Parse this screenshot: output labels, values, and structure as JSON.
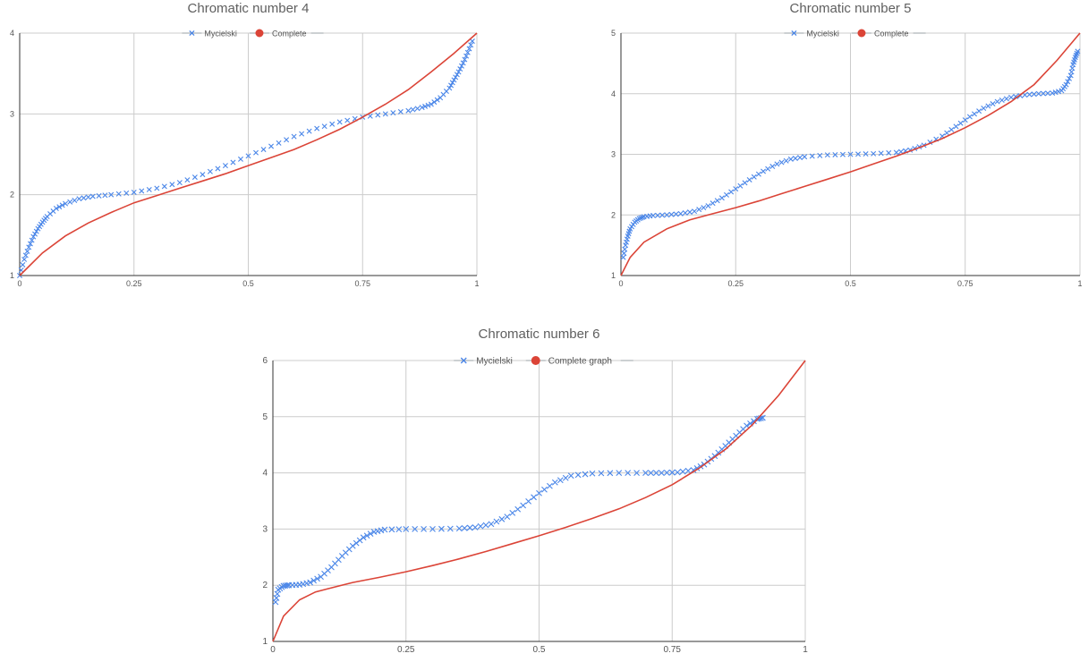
{
  "chart_data": [
    {
      "type": "scatter",
      "title": "Chromatic number 4",
      "xlabel": "",
      "ylabel": "",
      "xlim": [
        0,
        1
      ],
      "ylim": [
        1,
        4
      ],
      "x_ticks": [
        "0",
        "0.25",
        "0.5",
        "0.75",
        "1"
      ],
      "y_ticks": [
        "1",
        "2",
        "3",
        "4"
      ],
      "grid": true,
      "legend": "top-center",
      "series": [
        {
          "name": "Mycielski",
          "kind": "markers",
          "color": "#4a86e8",
          "x": [
            0,
            0.01,
            0.02,
            0.03,
            0.04,
            0.05,
            0.06,
            0.08,
            0.1,
            0.13,
            0.16,
            0.2,
            0.25,
            0.3,
            0.35,
            0.4,
            0.45,
            0.5,
            0.55,
            0.6,
            0.65,
            0.7,
            0.75,
            0.8,
            0.85,
            0.88,
            0.9,
            0.92,
            0.94,
            0.95,
            0.96,
            0.97,
            0.98,
            0.99
          ],
          "y": [
            1.0,
            1.2,
            1.35,
            1.48,
            1.58,
            1.66,
            1.73,
            1.83,
            1.89,
            1.95,
            1.98,
            2.0,
            2.03,
            2.08,
            2.15,
            2.25,
            2.36,
            2.48,
            2.6,
            2.72,
            2.82,
            2.9,
            2.96,
            3.0,
            3.04,
            3.08,
            3.12,
            3.2,
            3.32,
            3.42,
            3.52,
            3.63,
            3.76,
            3.9
          ]
        },
        {
          "name": "Complete",
          "kind": "line",
          "color": "#db4437",
          "x": [
            0,
            0.05,
            0.1,
            0.15,
            0.2,
            0.25,
            0.3,
            0.35,
            0.4,
            0.45,
            0.5,
            0.55,
            0.6,
            0.65,
            0.7,
            0.75,
            0.8,
            0.85,
            0.9,
            0.95,
            1
          ],
          "y": [
            1.0,
            1.28,
            1.49,
            1.65,
            1.78,
            1.9,
            1.99,
            2.08,
            2.17,
            2.26,
            2.36,
            2.46,
            2.56,
            2.68,
            2.81,
            2.96,
            3.12,
            3.3,
            3.52,
            3.75,
            4.0
          ]
        }
      ]
    },
    {
      "type": "scatter",
      "title": "Chromatic number 5",
      "xlabel": "",
      "ylabel": "",
      "xlim": [
        0,
        1
      ],
      "ylim": [
        1,
        5
      ],
      "x_ticks": [
        "0",
        "0.25",
        "0.5",
        "0.75",
        "1"
      ],
      "y_ticks": [
        "1",
        "2",
        "3",
        "4",
        "5"
      ],
      "grid": true,
      "legend": "top-center",
      "series": [
        {
          "name": "Mycielski",
          "kind": "markers",
          "color": "#4a86e8",
          "x": [
            0.005,
            0.01,
            0.015,
            0.02,
            0.03,
            0.04,
            0.05,
            0.07,
            0.1,
            0.13,
            0.16,
            0.19,
            0.22,
            0.25,
            0.28,
            0.31,
            0.34,
            0.37,
            0.4,
            0.45,
            0.5,
            0.55,
            0.6,
            0.63,
            0.66,
            0.7,
            0.73,
            0.76,
            0.79,
            0.82,
            0.85,
            0.88,
            0.91,
            0.94,
            0.96,
            0.97,
            0.98,
            0.985,
            0.99,
            0.995
          ],
          "y": [
            1.3,
            1.5,
            1.65,
            1.77,
            1.88,
            1.94,
            1.97,
            1.99,
            2.0,
            2.02,
            2.06,
            2.15,
            2.28,
            2.43,
            2.58,
            2.72,
            2.84,
            2.92,
            2.96,
            2.99,
            3.0,
            3.01,
            3.03,
            3.07,
            3.15,
            3.3,
            3.46,
            3.62,
            3.76,
            3.87,
            3.94,
            3.98,
            4.0,
            4.01,
            4.05,
            4.15,
            4.3,
            4.48,
            4.6,
            4.7
          ]
        },
        {
          "name": "Complete",
          "kind": "line",
          "color": "#db4437",
          "x": [
            0,
            0.02,
            0.05,
            0.1,
            0.15,
            0.2,
            0.25,
            0.3,
            0.35,
            0.4,
            0.45,
            0.5,
            0.55,
            0.6,
            0.65,
            0.7,
            0.75,
            0.8,
            0.85,
            0.9,
            0.95,
            1
          ],
          "y": [
            1.0,
            1.3,
            1.55,
            1.77,
            1.92,
            2.02,
            2.12,
            2.23,
            2.35,
            2.47,
            2.59,
            2.71,
            2.84,
            2.97,
            3.11,
            3.26,
            3.44,
            3.64,
            3.87,
            4.15,
            4.55,
            5.0
          ]
        }
      ]
    },
    {
      "type": "scatter",
      "title": "Chromatic number 6",
      "xlabel": "",
      "ylabel": "",
      "xlim": [
        0,
        1
      ],
      "ylim": [
        1,
        6
      ],
      "x_ticks": [
        "0",
        "0.25",
        "0.5",
        "0.75",
        "1"
      ],
      "y_ticks": [
        "1",
        "2",
        "3",
        "4",
        "5",
        "6"
      ],
      "grid": true,
      "legend": "top-center",
      "series": [
        {
          "name": "Mycielski",
          "kind": "markers",
          "color": "#4a86e8",
          "x": [
            0.005,
            0.01,
            0.02,
            0.03,
            0.05,
            0.07,
            0.09,
            0.11,
            0.13,
            0.15,
            0.17,
            0.19,
            0.21,
            0.25,
            0.3,
            0.35,
            0.38,
            0.41,
            0.44,
            0.47,
            0.5,
            0.53,
            0.56,
            0.6,
            0.65,
            0.7,
            0.73,
            0.76,
            0.79,
            0.81,
            0.83,
            0.85,
            0.87,
            0.89,
            0.91,
            0.92
          ],
          "y": [
            1.7,
            1.92,
            1.99,
            2.0,
            2.01,
            2.05,
            2.15,
            2.32,
            2.52,
            2.7,
            2.85,
            2.95,
            2.99,
            3.0,
            3.0,
            3.01,
            3.03,
            3.09,
            3.22,
            3.42,
            3.64,
            3.83,
            3.95,
            3.99,
            4.0,
            4.0,
            4.0,
            4.01,
            4.05,
            4.15,
            4.3,
            4.48,
            4.66,
            4.84,
            4.96,
            4.98
          ]
        },
        {
          "name": "Complete graph",
          "kind": "line",
          "color": "#db4437",
          "x": [
            0,
            0.02,
            0.05,
            0.08,
            0.1,
            0.15,
            0.2,
            0.25,
            0.3,
            0.35,
            0.4,
            0.45,
            0.5,
            0.55,
            0.6,
            0.65,
            0.7,
            0.75,
            0.8,
            0.85,
            0.9,
            0.95,
            1
          ],
          "y": [
            1.0,
            1.45,
            1.74,
            1.88,
            1.93,
            2.05,
            2.14,
            2.24,
            2.35,
            2.47,
            2.6,
            2.74,
            2.88,
            3.03,
            3.19,
            3.36,
            3.56,
            3.79,
            4.08,
            4.42,
            4.85,
            5.38,
            6.0
          ]
        }
      ]
    }
  ]
}
